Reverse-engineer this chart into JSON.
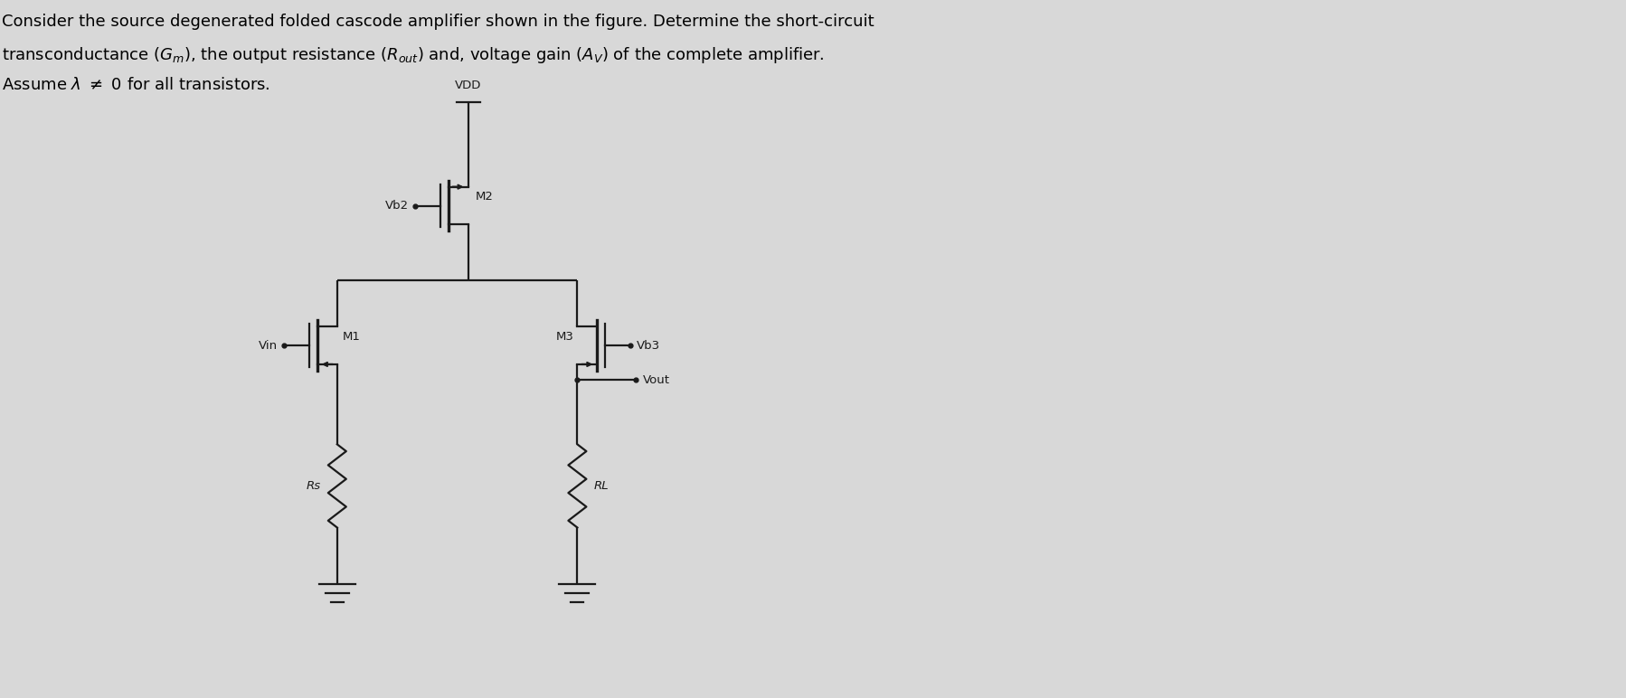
{
  "bg_color": "#d8d8d8",
  "fig_width": 17.98,
  "fig_height": 7.72,
  "title_fontsize": 13.0,
  "circuit": {
    "vdd_label": "VDD",
    "vb2_label": "Vb2",
    "vb3_label": "Vb3",
    "vin_label": "Vin",
    "vout_label": "Vout",
    "m1_label": "M1",
    "m2_label": "M2",
    "m3_label": "M3",
    "rs_label": "Rs",
    "rl_label": "RL"
  }
}
